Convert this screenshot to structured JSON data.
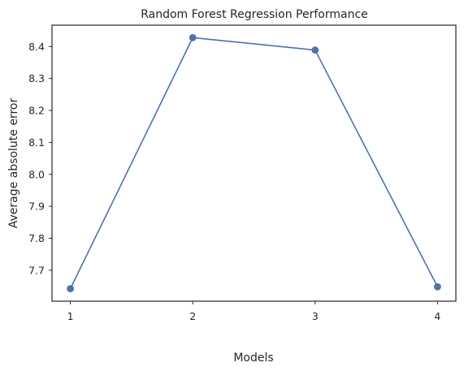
{
  "chart_data": {
    "type": "line",
    "title": "Random Forest Regression Performance",
    "xlabel": "Models",
    "ylabel": "Average absolute error",
    "x": [
      1,
      2,
      3,
      4
    ],
    "xticks": [
      "1",
      "2",
      "3",
      "4"
    ],
    "yticks": [
      "7.7",
      "7.8",
      "7.9",
      "8.0",
      "8.1",
      "8.2",
      "8.3",
      "8.4"
    ],
    "series": [
      {
        "values": [
          7.642,
          8.428,
          8.389,
          7.648
        ],
        "color": "#4c72b0",
        "marker": "circle"
      }
    ],
    "xlim": [
      0.85,
      4.15
    ],
    "ylim": [
      7.603,
      8.467
    ],
    "grid": false,
    "legend": "none"
  }
}
